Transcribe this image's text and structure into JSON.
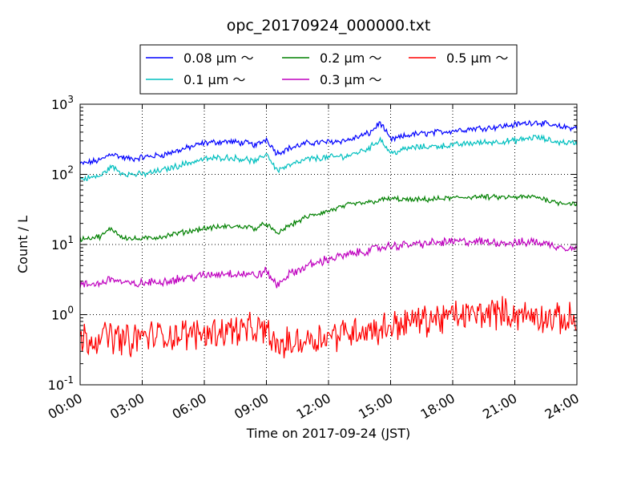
{
  "chart_data": {
    "type": "line",
    "title": "opc_20170924_000000.txt",
    "xlabel": "Time on 2017-09-24 (JST)",
    "ylabel": "Count / L",
    "y_scale": "log",
    "xlim": [
      "00:00",
      "24:00"
    ],
    "ylim": [
      0.1,
      1000
    ],
    "x_ticks": [
      "00:00",
      "03:00",
      "06:00",
      "09:00",
      "12:00",
      "15:00",
      "18:00",
      "21:00",
      "24:00"
    ],
    "y_ticks": [
      {
        "base": "10",
        "exp": "-1"
      },
      {
        "base": "10",
        "exp": "0"
      },
      {
        "base": "10",
        "exp": "1"
      },
      {
        "base": "10",
        "exp": "2"
      },
      {
        "base": "10",
        "exp": "3"
      }
    ],
    "grid": true,
    "legend_placement": "top-center",
    "x_hours": [
      0,
      1,
      1.5,
      2,
      2.5,
      3,
      4,
      5,
      6,
      7,
      8,
      8.5,
      9,
      9.5,
      10,
      11,
      12,
      13,
      14,
      14.5,
      15,
      16,
      17,
      18,
      19,
      20,
      21,
      22,
      23,
      24
    ],
    "series": [
      {
        "name": "0.08 μm ～",
        "color": "#0000ff",
        "values": [
          140,
          160,
          200,
          175,
          165,
          175,
          190,
          230,
          280,
          295,
          280,
          260,
          320,
          200,
          230,
          280,
          290,
          310,
          390,
          550,
          310,
          370,
          390,
          420,
          450,
          470,
          510,
          560,
          480,
          460
        ]
      },
      {
        "name": "0.1 μm ～",
        "color": "#00bfbf",
        "values": [
          85,
          95,
          130,
          105,
          100,
          100,
          115,
          140,
          165,
          175,
          165,
          150,
          200,
          115,
          130,
          165,
          175,
          185,
          240,
          320,
          200,
          240,
          250,
          260,
          280,
          290,
          300,
          340,
          290,
          280
        ]
      },
      {
        "name": "0.2 μm ～",
        "color": "#008000",
        "values": [
          12,
          13,
          17,
          13,
          12,
          12,
          13,
          15,
          17,
          18,
          18,
          17,
          20,
          14,
          18,
          25,
          30,
          37,
          40,
          43,
          45,
          43,
          44,
          46,
          48,
          47,
          47,
          48,
          40,
          38
        ]
      },
      {
        "name": "0.3 μm ～",
        "color": "#bf00bf",
        "values": [
          2.6,
          2.8,
          3.3,
          2.9,
          2.7,
          2.8,
          3.0,
          3.3,
          3.6,
          3.9,
          3.8,
          3.6,
          4.2,
          2.6,
          3.6,
          5.0,
          6.2,
          7.2,
          8.3,
          9.0,
          9.5,
          10.0,
          10.5,
          11.0,
          11.0,
          10.8,
          10.5,
          11.0,
          9.5,
          8.8
        ]
      },
      {
        "name": "0.5 μm ～",
        "color": "#ff0000",
        "values": [
          0.45,
          0.48,
          0.5,
          0.45,
          0.42,
          0.5,
          0.5,
          0.52,
          0.55,
          0.6,
          0.62,
          0.58,
          0.6,
          0.35,
          0.38,
          0.45,
          0.5,
          0.58,
          0.62,
          0.6,
          0.7,
          0.8,
          0.85,
          0.95,
          1.0,
          1.1,
          1.0,
          0.95,
          0.85,
          0.85
        ]
      }
    ]
  }
}
